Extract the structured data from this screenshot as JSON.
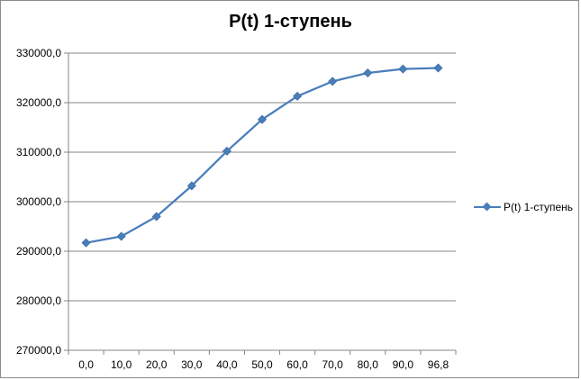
{
  "chart_data": {
    "type": "line",
    "title": "P(t) 1-ступень",
    "categories": [
      "0,0",
      "10,0",
      "20,0",
      "30,0",
      "40,0",
      "50,0",
      "60,0",
      "70,0",
      "80,0",
      "90,0",
      "96,8"
    ],
    "series": [
      {
        "name": "P(t) 1-ступень",
        "values": [
          291700,
          293000,
          297000,
          303200,
          310200,
          316600,
          321300,
          324300,
          326000,
          326800,
          327000
        ],
        "color": "#4a7ebb",
        "marker": "diamond"
      }
    ],
    "yticks": [
      "270000,0",
      "280000,0",
      "290000,0",
      "300000,0",
      "310000,0",
      "320000,0",
      "330000,0"
    ],
    "ylim": [
      270000,
      330000
    ],
    "grid": true,
    "legend_position": "right"
  }
}
